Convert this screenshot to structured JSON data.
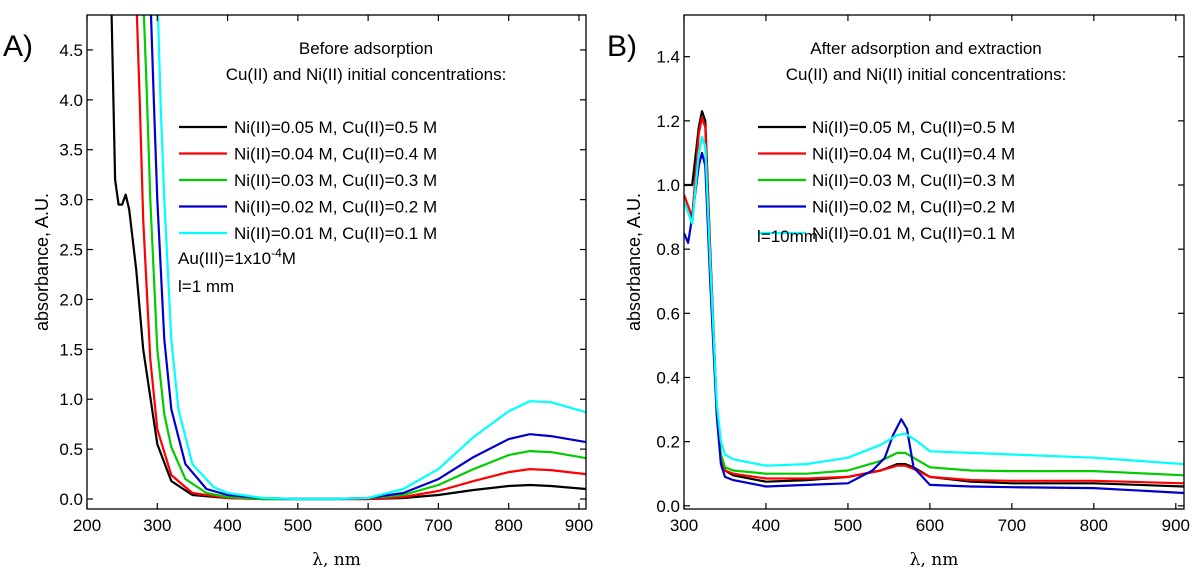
{
  "chart_data": [
    {
      "type": "line",
      "panel_label": "A)",
      "title": "Before adsorption",
      "subtitle": "Cu(II) and Ni(II) initial concentrations:",
      "xlabel": "λ, nm",
      "ylabel": "absorbance, A.U.",
      "xlim": [
        200,
        910
      ],
      "ylim": [
        -0.1,
        4.85
      ],
      "xticks": [
        200,
        300,
        400,
        500,
        600,
        700,
        800,
        900
      ],
      "yticks": [
        0.0,
        0.5,
        1.0,
        1.5,
        2.0,
        2.5,
        3.0,
        3.5,
        4.0,
        4.5
      ],
      "ytick_labels": [
        "0.0",
        "0.5",
        "1.0",
        "1.5",
        "2.0",
        "2.5",
        "3.0",
        "3.5",
        "4.0",
        "4.5"
      ],
      "notes": [
        "Au(III)=1x10",
        "-4",
        "M",
        "l=1 mm"
      ],
      "legend_position": "top-right",
      "series": [
        {
          "name": "Ni(II)=0.05 M, Cu(II)=0.5 M",
          "color": "#000000",
          "x": [
            235,
            240,
            245,
            250,
            255,
            260,
            270,
            280,
            300,
            320,
            350,
            400,
            450,
            500,
            550,
            600,
            650,
            700,
            750,
            800,
            830,
            860,
            910
          ],
          "y": [
            4.85,
            3.2,
            2.95,
            2.95,
            3.05,
            2.9,
            2.3,
            1.5,
            0.55,
            0.18,
            0.04,
            0.01,
            0.0,
            0.0,
            0.0,
            0.0,
            0.01,
            0.04,
            0.09,
            0.13,
            0.14,
            0.13,
            0.1
          ]
        },
        {
          "name": "Ni(II)=0.04 M, Cu(II)=0.4 M",
          "color": "#ff0000",
          "x": [
            271,
            275,
            280,
            290,
            300,
            320,
            350,
            400,
            450,
            500,
            550,
            600,
            650,
            700,
            750,
            800,
            830,
            860,
            910
          ],
          "y": [
            4.85,
            4.0,
            2.8,
            1.4,
            0.7,
            0.24,
            0.06,
            0.01,
            0.0,
            0.0,
            0.0,
            0.0,
            0.02,
            0.08,
            0.18,
            0.27,
            0.3,
            0.29,
            0.25
          ]
        },
        {
          "name": "Ni(II)=0.03 M, Cu(II)=0.3 M",
          "color": "#00cc00",
          "x": [
            281,
            285,
            290,
            300,
            310,
            320,
            340,
            370,
            400,
            450,
            500,
            550,
            600,
            650,
            700,
            750,
            800,
            830,
            860,
            910
          ],
          "y": [
            4.85,
            4.1,
            3.0,
            1.5,
            0.85,
            0.52,
            0.2,
            0.06,
            0.02,
            0.0,
            0.0,
            0.0,
            0.01,
            0.04,
            0.14,
            0.3,
            0.44,
            0.48,
            0.47,
            0.41
          ]
        },
        {
          "name": "Ni(II)=0.02 M, Cu(II)=0.2 M",
          "color": "#0000cc",
          "x": [
            291,
            295,
            300,
            310,
            320,
            340,
            370,
            400,
            450,
            500,
            550,
            600,
            650,
            700,
            750,
            800,
            830,
            860,
            910
          ],
          "y": [
            4.85,
            4.0,
            3.0,
            1.6,
            0.9,
            0.35,
            0.1,
            0.04,
            0.01,
            0.0,
            0.0,
            0.01,
            0.06,
            0.2,
            0.42,
            0.6,
            0.65,
            0.63,
            0.57
          ]
        },
        {
          "name": "Ni(II)=0.01 M, Cu(II)=0.1 M",
          "color": "#00ffff",
          "x": [
            301,
            305,
            310,
            320,
            330,
            350,
            380,
            400,
            450,
            500,
            550,
            600,
            650,
            700,
            750,
            800,
            830,
            860,
            910
          ],
          "y": [
            4.85,
            3.9,
            3.0,
            1.6,
            0.9,
            0.35,
            0.12,
            0.06,
            0.01,
            0.0,
            0.0,
            0.01,
            0.1,
            0.3,
            0.62,
            0.88,
            0.98,
            0.97,
            0.87
          ]
        }
      ]
    },
    {
      "type": "line",
      "panel_label": "B)",
      "title": "After adsorption and extraction",
      "subtitle": "Cu(II) and Ni(II) initial concentrations:",
      "xlabel": "λ, nm",
      "ylabel": "absorbance, A.U.",
      "xlim": [
        300,
        910
      ],
      "ylim": [
        -0.01,
        1.53
      ],
      "xticks": [
        300,
        400,
        500,
        600,
        700,
        800,
        900
      ],
      "yticks": [
        0.0,
        0.2,
        0.4,
        0.6,
        0.8,
        1.0,
        1.2,
        1.4
      ],
      "ytick_labels": [
        "0.0",
        "0.2",
        "0.4",
        "0.6",
        "0.8",
        "1.0",
        "1.2",
        "1.4"
      ],
      "notes": [
        "l=10mm"
      ],
      "legend_position": "top-right",
      "series": [
        {
          "name": "Ni(II)=0.05 M, Cu(II)=0.5 M",
          "color": "#000000",
          "x": [
            300,
            310,
            318,
            322,
            326,
            332,
            340,
            345,
            350,
            360,
            400,
            450,
            500,
            540,
            560,
            570,
            580,
            600,
            650,
            700,
            800,
            910
          ],
          "y": [
            1.0,
            1.0,
            1.18,
            1.23,
            1.2,
            0.8,
            0.3,
            0.15,
            0.11,
            0.095,
            0.075,
            0.08,
            0.09,
            0.11,
            0.13,
            0.13,
            0.12,
            0.09,
            0.075,
            0.07,
            0.07,
            0.06
          ]
        },
        {
          "name": "Ni(II)=0.04 M, Cu(II)=0.4 M",
          "color": "#ff0000",
          "x": [
            300,
            310,
            318,
            322,
            326,
            332,
            340,
            345,
            350,
            360,
            400,
            450,
            500,
            540,
            560,
            570,
            580,
            600,
            650,
            700,
            800,
            910
          ],
          "y": [
            0.97,
            0.9,
            1.16,
            1.21,
            1.18,
            0.78,
            0.3,
            0.15,
            0.11,
            0.1,
            0.085,
            0.085,
            0.09,
            0.11,
            0.125,
            0.125,
            0.115,
            0.09,
            0.08,
            0.078,
            0.078,
            0.07
          ]
        },
        {
          "name": "Ni(II)=0.03 M, Cu(II)=0.3 M",
          "color": "#00cc00",
          "x": [
            300,
            310,
            318,
            322,
            326,
            332,
            340,
            345,
            350,
            360,
            400,
            450,
            500,
            540,
            560,
            570,
            580,
            600,
            650,
            700,
            800,
            910
          ],
          "y": [
            0.95,
            0.88,
            1.1,
            1.15,
            1.12,
            0.75,
            0.3,
            0.16,
            0.12,
            0.11,
            0.1,
            0.1,
            0.11,
            0.14,
            0.165,
            0.165,
            0.15,
            0.12,
            0.11,
            0.108,
            0.108,
            0.095
          ]
        },
        {
          "name": "Ni(II)=0.02 M, Cu(II)=0.2 M",
          "color": "#0000cc",
          "x": [
            300,
            305,
            310,
            318,
            322,
            326,
            332,
            340,
            345,
            350,
            360,
            400,
            450,
            500,
            530,
            545,
            555,
            565,
            572,
            580,
            600,
            650,
            700,
            800,
            910
          ],
          "y": [
            0.85,
            0.82,
            0.9,
            1.06,
            1.1,
            1.06,
            0.7,
            0.28,
            0.13,
            0.09,
            0.08,
            0.06,
            0.065,
            0.07,
            0.11,
            0.15,
            0.22,
            0.27,
            0.24,
            0.12,
            0.065,
            0.06,
            0.058,
            0.055,
            0.04
          ]
        },
        {
          "name": "Ni(II)=0.01 M, Cu(II)=0.1 M",
          "color": "#00ffff",
          "x": [
            300,
            310,
            318,
            322,
            326,
            332,
            340,
            345,
            350,
            360,
            400,
            450,
            500,
            540,
            560,
            570,
            585,
            600,
            650,
            700,
            800,
            910
          ],
          "y": [
            0.95,
            0.88,
            1.1,
            1.15,
            1.12,
            0.76,
            0.32,
            0.2,
            0.16,
            0.145,
            0.125,
            0.13,
            0.15,
            0.19,
            0.22,
            0.225,
            0.2,
            0.17,
            0.165,
            0.16,
            0.15,
            0.13
          ]
        }
      ]
    }
  ]
}
